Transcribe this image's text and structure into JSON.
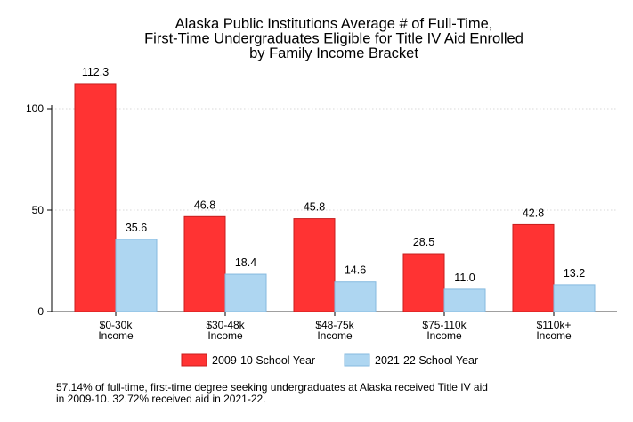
{
  "chart_data": {
    "type": "bar",
    "title": [
      "Alaska Public Institutions Average # of Full-Time,",
      "First-Time Undergraduates Eligible for Title IV Aid Enrolled",
      "by Family Income Bracket"
    ],
    "xlabel": "",
    "ylabel": "",
    "ylim": [
      0,
      125
    ],
    "yticks": [
      0,
      50,
      100
    ],
    "grid": true,
    "legend_position": "bottom",
    "categories": [
      [
        "$0-30k",
        "Income"
      ],
      [
        "$30-48k",
        "Income"
      ],
      [
        "$48-75k",
        "Income"
      ],
      [
        "$75-110k",
        "Income"
      ],
      [
        "$110k+",
        "Income"
      ]
    ],
    "series": [
      {
        "name": "2009-10 School Year",
        "color": "#ff3333",
        "stroke": "#c81e1e",
        "values": [
          112.3,
          46.8,
          45.8,
          28.5,
          42.8
        ],
        "labels": [
          "112.3",
          "46.8",
          "45.8",
          "28.5",
          "42.8"
        ]
      },
      {
        "name": "2021-22 School Year",
        "color": "#aed6f1",
        "stroke": "#85b9df",
        "values": [
          35.6,
          18.4,
          14.6,
          11.0,
          13.2
        ],
        "labels": [
          "35.6",
          "18.4",
          "14.6",
          "11.0",
          "13.2"
        ]
      }
    ]
  },
  "note": "57.14% of full-time, first-time degree seeking undergraduates at Alaska received Title IV aid\nin 2009-10. 32.72% received aid in 2021-22."
}
